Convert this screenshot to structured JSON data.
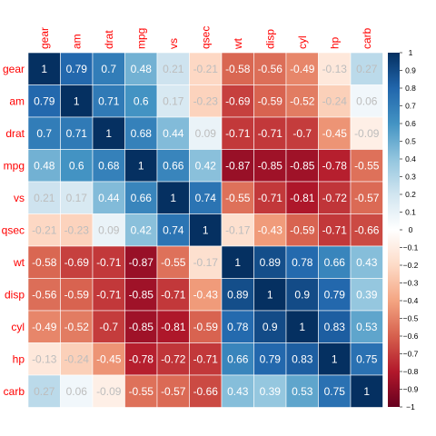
{
  "chart_data": {
    "type": "heatmap",
    "title": "",
    "xlabel": "",
    "ylabel": "",
    "variables": [
      "gear",
      "am",
      "drat",
      "mpg",
      "vs",
      "qsec",
      "wt",
      "disp",
      "cyl",
      "hp",
      "carb"
    ],
    "matrix": [
      [
        1,
        0.79,
        0.7,
        0.48,
        0.21,
        -0.21,
        -0.58,
        -0.56,
        -0.49,
        -0.13,
        0.27
      ],
      [
        0.79,
        1,
        0.71,
        0.6,
        0.17,
        -0.23,
        -0.69,
        -0.59,
        -0.52,
        -0.24,
        0.06
      ],
      [
        0.7,
        0.71,
        1,
        0.68,
        0.44,
        0.09,
        -0.71,
        -0.71,
        -0.7,
        -0.45,
        -0.09
      ],
      [
        0.48,
        0.6,
        0.68,
        1,
        0.66,
        0.42,
        -0.87,
        -0.85,
        -0.85,
        -0.78,
        -0.55
      ],
      [
        0.21,
        0.17,
        0.44,
        0.66,
        1,
        0.74,
        -0.55,
        -0.71,
        -0.81,
        -0.72,
        -0.57
      ],
      [
        -0.21,
        -0.23,
        0.09,
        0.42,
        0.74,
        1,
        -0.17,
        -0.43,
        -0.59,
        -0.71,
        -0.66
      ],
      [
        -0.58,
        -0.69,
        -0.71,
        -0.87,
        -0.55,
        -0.17,
        1,
        0.89,
        0.78,
        0.66,
        0.43
      ],
      [
        -0.56,
        -0.59,
        -0.71,
        -0.85,
        -0.71,
        -0.43,
        0.89,
        1,
        0.9,
        0.79,
        0.39
      ],
      [
        -0.49,
        -0.52,
        -0.7,
        -0.85,
        -0.81,
        -0.59,
        0.78,
        0.9,
        1,
        0.83,
        0.53
      ],
      [
        -0.13,
        -0.24,
        -0.45,
        -0.78,
        -0.72,
        -0.71,
        0.66,
        0.79,
        0.83,
        1,
        0.75
      ],
      [
        0.27,
        0.06,
        -0.09,
        -0.55,
        -0.57,
        -0.66,
        0.43,
        0.39,
        0.53,
        0.75,
        1
      ]
    ],
    "color_scale": {
      "range": [
        -1,
        1
      ],
      "ticks": [
        1,
        0.9,
        0.8,
        0.7,
        0.6,
        0.5,
        0.4,
        0.3,
        0.2,
        0.1,
        0,
        -0.1,
        -0.2,
        -0.3,
        -0.4,
        -0.5,
        -0.6,
        -0.7,
        -0.8,
        -0.9,
        -1
      ],
      "stops": [
        "#67001F",
        "#B2182B",
        "#D6604D",
        "#F4A582",
        "#FDDBC7",
        "#FFFFFF",
        "#D1E5F0",
        "#92C5DE",
        "#4393C3",
        "#2166AC",
        "#053061"
      ]
    },
    "label_color": "#FF0000",
    "legend": "right",
    "grid": true
  }
}
